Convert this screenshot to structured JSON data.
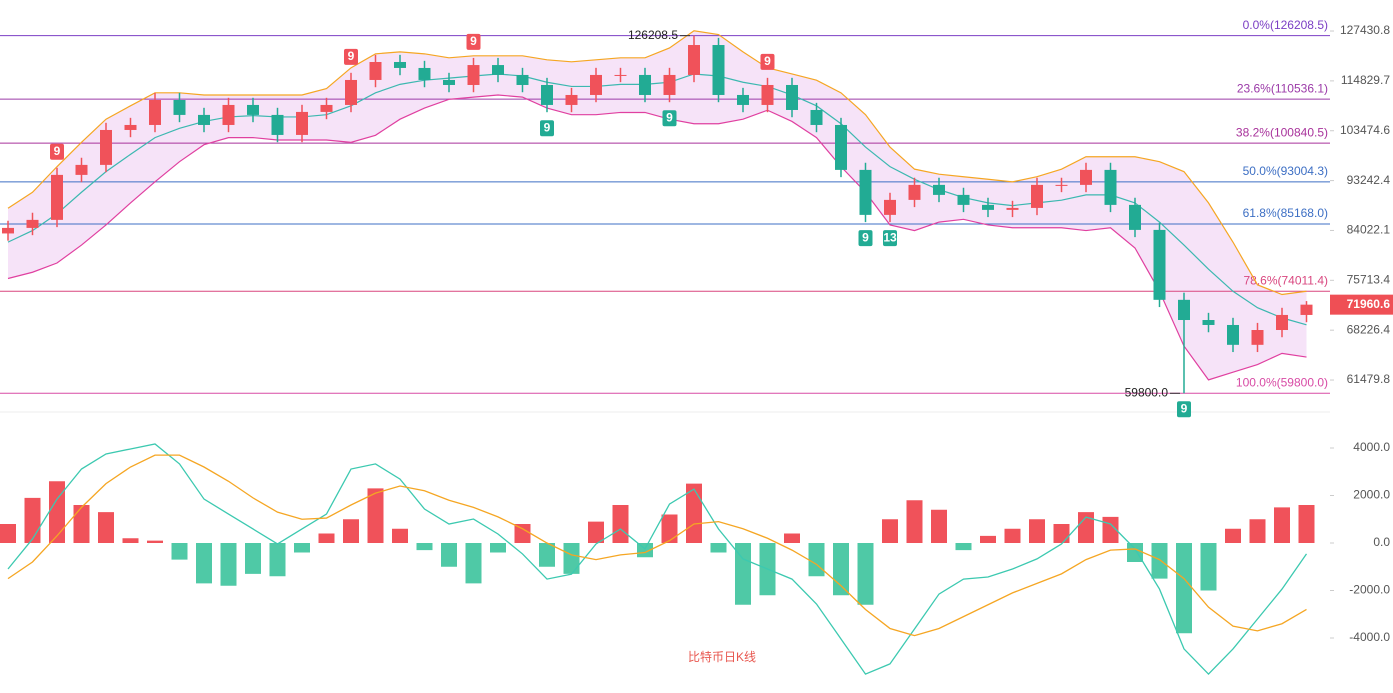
{
  "chart_data": [
    {
      "type": "candlestick",
      "title": "比特币日K线",
      "log_scale": true,
      "ylim": [
        57750,
        135960
      ],
      "yticks": [
        127430.8,
        114829.7,
        103474.6,
        93242.4,
        84022.1,
        75713.4,
        68226.4,
        61479.8
      ],
      "up_color": "#f0525a",
      "down_color": "#22ab94",
      "open": [
        83500,
        84470,
        85900,
        94360,
        96350,
        103640,
        104730,
        110340,
        106950,
        104730,
        109200,
        106950,
        102570,
        107620,
        109200,
        115050,
        119450,
        117970,
        115050,
        113850,
        118690,
        116260,
        113850,
        109200,
        111500,
        116260,
        116260,
        111500,
        116260,
        123760,
        111500,
        109200,
        113850,
        108060,
        104730,
        95350,
        86800,
        89560,
        92410,
        90500,
        88630,
        87710,
        88070,
        92410,
        92410,
        95350,
        88630,
        84120,
        72690,
        69690,
        68970,
        66170,
        68250,
        70430
      ],
      "high": [
        85740,
        87190,
        95780,
        97800,
        105200,
        106300,
        112000,
        112000,
        108550,
        110840,
        110840,
        108550,
        109230,
        110840,
        116780,
        121240,
        121240,
        119740,
        116780,
        120470,
        120470,
        118000,
        115560,
        113170,
        118000,
        118000,
        118000,
        118000,
        126208.5,
        125620,
        113170,
        115560,
        115560,
        109680,
        106300,
        96780,
        90900,
        93800,
        93800,
        91860,
        89960,
        89390,
        93800,
        93800,
        96780,
        96780,
        89960,
        85380,
        73780,
        70740,
        70010,
        69270,
        71490,
        72500
      ],
      "low": [
        82250,
        83200,
        84610,
        92940,
        94900,
        102090,
        103160,
        105340,
        103160,
        103160,
        105340,
        101030,
        101030,
        106000,
        107560,
        113320,
        116200,
        113320,
        112140,
        112140,
        114520,
        112140,
        107560,
        107560,
        109830,
        114520,
        109830,
        109830,
        114520,
        109830,
        107560,
        107560,
        106440,
        103160,
        93920,
        85500,
        85500,
        88220,
        89140,
        87300,
        86400,
        86400,
        86750,
        91020,
        91020,
        87300,
        82860,
        71600,
        59800,
        67930,
        65180,
        65180,
        67230,
        69370
      ],
      "close": [
        84470,
        85900,
        94360,
        96350,
        103640,
        104730,
        110340,
        106950,
        104730,
        109200,
        106950,
        102570,
        107620,
        109200,
        115050,
        119450,
        117970,
        115050,
        113850,
        118690,
        116260,
        113850,
        109200,
        111500,
        116260,
        116260,
        111500,
        116260,
        123760,
        111500,
        109200,
        113850,
        108060,
        104730,
        95350,
        86800,
        89560,
        92410,
        90500,
        88630,
        87710,
        88070,
        92410,
        92410,
        95350,
        88630,
        84120,
        72690,
        69690,
        68970,
        66170,
        68250,
        70430,
        71960.6
      ],
      "upper": [
        88000,
        91000,
        96000,
        101000,
        106000,
        109000,
        112000,
        112000,
        111500,
        111500,
        111500,
        111500,
        111500,
        113000,
        118000,
        121500,
        122000,
        121500,
        120500,
        121000,
        121000,
        121000,
        120000,
        119500,
        120000,
        120500,
        120500,
        123000,
        127500,
        126500,
        122000,
        118000,
        116500,
        115000,
        112000,
        107000,
        100000,
        95500,
        94500,
        94000,
        93500,
        93000,
        94000,
        95500,
        98000,
        98000,
        98000,
        97000,
        95000,
        89000,
        82000,
        75000,
        73500,
        74000
      ],
      "middle": [
        82000,
        84000,
        87000,
        91000,
        95000,
        98500,
        102000,
        104000,
        105500,
        106500,
        106800,
        106500,
        106500,
        107000,
        109000,
        112000,
        114000,
        115000,
        115500,
        116000,
        116500,
        116000,
        114500,
        113500,
        113500,
        114000,
        114000,
        114500,
        116500,
        116000,
        114500,
        113500,
        111500,
        109000,
        105000,
        100000,
        96000,
        93500,
        91500,
        90000,
        89000,
        88500,
        89000,
        89500,
        90500,
        90500,
        89000,
        85500,
        81500,
        77500,
        74000,
        71500,
        70000,
        69000
      ],
      "lower": [
        76000,
        77000,
        78500,
        81500,
        85000,
        89000,
        93000,
        97000,
        100500,
        102000,
        102000,
        101500,
        101500,
        101500,
        101000,
        102500,
        106000,
        108500,
        110500,
        111000,
        111500,
        111000,
        108500,
        107000,
        107000,
        107500,
        107500,
        106000,
        105000,
        105000,
        106000,
        108000,
        105500,
        102000,
        96000,
        91000,
        85000,
        84000,
        85500,
        86000,
        85000,
        84500,
        84500,
        84500,
        84000,
        84500,
        81000,
        74000,
        66000,
        61500,
        62500,
        63500,
        65000,
        64500
      ],
      "upper_color": "#f5a623",
      "middle_color": "#3cb8b0",
      "lower_color": "#e040a0",
      "band_fill": "#f3d9f6",
      "td_sell": [
        null,
        null,
        "9",
        null,
        null,
        null,
        null,
        null,
        null,
        null,
        null,
        null,
        null,
        null,
        "9",
        null,
        null,
        null,
        null,
        "9",
        null,
        null,
        null,
        null,
        null,
        null,
        null,
        null,
        null,
        null,
        null,
        "9",
        null,
        null,
        null,
        null,
        null,
        null,
        null,
        null,
        null,
        null,
        null,
        null,
        null,
        null,
        null,
        null,
        null,
        null,
        null,
        null,
        null,
        null
      ],
      "td_buy": [
        null,
        null,
        null,
        null,
        null,
        null,
        null,
        null,
        null,
        null,
        null,
        null,
        null,
        null,
        null,
        null,
        null,
        null,
        null,
        null,
        null,
        null,
        "9",
        null,
        null,
        null,
        null,
        "9",
        null,
        null,
        null,
        null,
        null,
        null,
        null,
        "9",
        "13",
        null,
        null,
        null,
        null,
        null,
        null,
        null,
        null,
        null,
        null,
        null,
        "9",
        null,
        null,
        null,
        null,
        null
      ],
      "high_labels": [
        null,
        null,
        null,
        null,
        null,
        null,
        null,
        null,
        null,
        null,
        null,
        null,
        null,
        null,
        null,
        null,
        null,
        null,
        null,
        null,
        null,
        null,
        null,
        null,
        null,
        null,
        null,
        null,
        "126208.5",
        null,
        null,
        null,
        null,
        null,
        null,
        null,
        null,
        null,
        null,
        null,
        null,
        null,
        null,
        null,
        null,
        null,
        null,
        null,
        null,
        null,
        null,
        null,
        null,
        null
      ],
      "low_labels": [
        null,
        null,
        null,
        null,
        null,
        null,
        null,
        null,
        null,
        null,
        null,
        null,
        null,
        null,
        null,
        null,
        null,
        null,
        null,
        null,
        null,
        null,
        null,
        null,
        null,
        null,
        null,
        null,
        null,
        null,
        null,
        null,
        null,
        null,
        null,
        null,
        null,
        null,
        null,
        null,
        null,
        null,
        null,
        null,
        null,
        null,
        null,
        null,
        "59800.0",
        null,
        null,
        null,
        null,
        null
      ],
      "fib_levels": [
        {
          "label": "0.0%(126208.5)",
          "value": 126208.5,
          "color": "#7b3fc4"
        },
        {
          "label": "23.6%(110536.1)",
          "value": 110536.1,
          "color": "#9b3aa8"
        },
        {
          "label": "38.2%(100840.5)",
          "value": 100840.5,
          "color": "#a8329b"
        },
        {
          "label": "50.0%(93004.3)",
          "value": 93004.3,
          "color": "#3d6fc4"
        },
        {
          "label": "61.8%(85168.0)",
          "value": 85168.0,
          "color": "#3d6fc4"
        },
        {
          "label": "78.6%(74011.4)",
          "value": 74011.4,
          "color": "#d9477f"
        },
        {
          "label": "100.0%(59800.0)",
          "value": 59800.0,
          "color": "#d84ba5"
        }
      ],
      "last_price_color": "#ef4f55"
    },
    {
      "type": "macd",
      "ylim": [
        -6190,
        5390
      ],
      "yticks": [
        {
          "value": 4000,
          "label": "4000.0"
        },
        {
          "value": 2000,
          "label": "2000.0"
        },
        {
          "value": 0,
          "label": "0.0"
        },
        {
          "value": -2000,
          "label": "-2000.0"
        },
        {
          "value": -4000,
          "label": "-4000.0"
        }
      ],
      "series": [
        {
          "name": "DIF",
          "color": "#3cc9b0",
          "values": [
            -1095,
            170,
            1850,
            3115,
            3750,
            3960,
            4170,
            3330,
            1850,
            1220,
            590,
            -40,
            590,
            1220,
            3115,
            3330,
            2690,
            1430,
            800,
            1010,
            380,
            -460,
            -1520,
            -1310,
            -40,
            590,
            -250,
            1640,
            2270,
            590,
            -670,
            -1095,
            -1520,
            -2570,
            -4040,
            -5520,
            -5090,
            -3620,
            -2150,
            -1520,
            -1430,
            -1095,
            -670,
            -40,
            1090,
            800,
            -250,
            -1940,
            -4460,
            -5520,
            -4460,
            -3200,
            -1940,
            -460
          ]
        },
        {
          "name": "DEA",
          "color": "#f5a623",
          "values": [
            -1500,
            -800,
            300,
            1500,
            2500,
            3200,
            3700,
            3700,
            3200,
            2600,
            1900,
            1300,
            1000,
            1050,
            1600,
            2100,
            2400,
            2200,
            1800,
            1500,
            1100,
            600,
            0,
            -500,
            -700,
            -500,
            -400,
            100,
            800,
            900,
            600,
            200,
            -300,
            -900,
            -1800,
            -2800,
            -3600,
            -3900,
            -3600,
            -3100,
            -2600,
            -2100,
            -1700,
            -1300,
            -700,
            -300,
            -250,
            -700,
            -1500,
            -2700,
            -3500,
            -3700,
            -3400,
            -2800
          ]
        },
        {
          "name": "MACD",
          "color": "#f0525a",
          "negative_color": "#4fc9a6",
          "values": [
            800,
            1900,
            2600,
            1600,
            1300,
            200,
            100,
            -700,
            -1700,
            -1800,
            -1300,
            -1400,
            -400,
            400,
            1000,
            2300,
            600,
            -300,
            -1000,
            -1700,
            -400,
            800,
            -1000,
            -1300,
            900,
            1600,
            -600,
            1200,
            2500,
            -400,
            -2600,
            -2200,
            400,
            -1400,
            -2200,
            -2600,
            1000,
            1800,
            1400,
            -300,
            300,
            600,
            1000,
            800,
            1300,
            1100,
            -800,
            -1500,
            -3800,
            -2000,
            600,
            1000,
            1500,
            1600
          ]
        }
      ]
    }
  ]
}
